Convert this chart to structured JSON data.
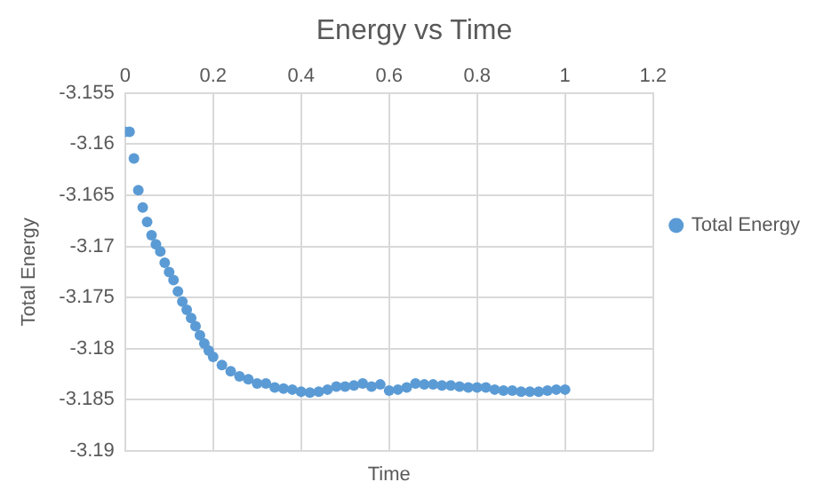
{
  "chart_data": {
    "type": "scatter",
    "title": "Energy vs Time",
    "xlabel": "Time",
    "ylabel": "Total Energy",
    "x": [
      0,
      0.01,
      0.02,
      0.03,
      0.04,
      0.05,
      0.06,
      0.07,
      0.08,
      0.09,
      0.1,
      0.11,
      0.12,
      0.13,
      0.14,
      0.15,
      0.16,
      0.17,
      0.18,
      0.19,
      0.2,
      0.22,
      0.24,
      0.26,
      0.28,
      0.3,
      0.32,
      0.34,
      0.36,
      0.38,
      0.4,
      0.42,
      0.44,
      0.46,
      0.48,
      0.5,
      0.52,
      0.54,
      0.56,
      0.58,
      0.6,
      0.62,
      0.64,
      0.66,
      0.68,
      0.7,
      0.72,
      0.74,
      0.76,
      0.78,
      0.8,
      0.82,
      0.84,
      0.86,
      0.88,
      0.9,
      0.92,
      0.94,
      0.96,
      0.98,
      1.0
    ],
    "series": [
      {
        "name": "Total Energy",
        "color": "#5b9bd5",
        "values": [
          -3.1588,
          -3.1588,
          -3.1614,
          -3.1645,
          -3.1662,
          -3.1676,
          -3.1689,
          -3.1698,
          -3.1705,
          -3.1716,
          -3.1725,
          -3.1733,
          -3.1744,
          -3.1754,
          -3.1762,
          -3.177,
          -3.1778,
          -3.1787,
          -3.1795,
          -3.1802,
          -3.1808,
          -3.1816,
          -3.1822,
          -3.1827,
          -3.183,
          -3.1834,
          -3.1834,
          -3.1838,
          -3.1839,
          -3.184,
          -3.1842,
          -3.1843,
          -3.1842,
          -3.184,
          -3.1837,
          -3.1837,
          -3.1836,
          -3.1834,
          -3.1837,
          -3.1835,
          -3.1841,
          -3.184,
          -3.1838,
          -3.1834,
          -3.1835,
          -3.1835,
          -3.1836,
          -3.1836,
          -3.1837,
          -3.1838,
          -3.1838,
          -3.1838,
          -3.184,
          -3.1841,
          -3.1841,
          -3.1842,
          -3.1842,
          -3.1842,
          -3.1841,
          -3.184,
          -3.184
        ]
      }
    ],
    "xlim": [
      0,
      1.2
    ],
    "xticks": [
      0,
      0.2,
      0.4,
      0.6,
      0.8,
      1,
      1.2
    ],
    "ylim": [
      -3.19,
      -3.155
    ],
    "yticks": [
      -3.19,
      -3.185,
      -3.18,
      -3.175,
      -3.17,
      -3.165,
      -3.16,
      -3.155
    ],
    "grid": true,
    "legend": "right",
    "marker": "circle"
  }
}
